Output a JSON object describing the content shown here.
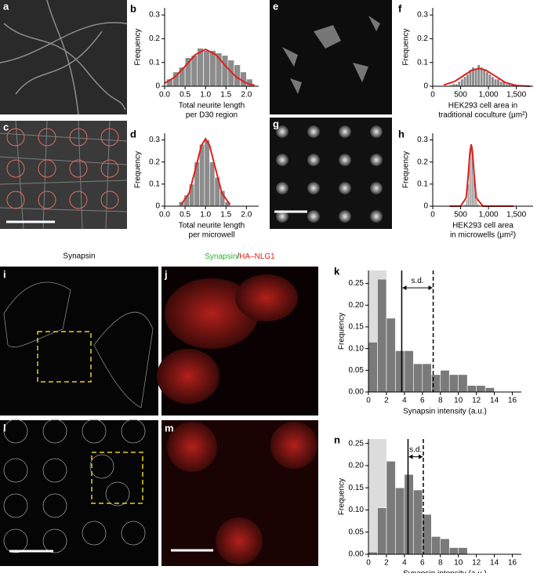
{
  "panel_labels": [
    "a",
    "c",
    "e",
    "g",
    "i",
    "j",
    "l",
    "m"
  ],
  "captions": {
    "i": "Synapsin",
    "j": [
      "Synapsin",
      "/",
      "HA–NLG1"
    ]
  },
  "chart_data": [
    {
      "type": "histogram",
      "label": "b",
      "ylabel": "Frequency",
      "xlabel": [
        "Total neurite length",
        "per D30 region"
      ],
      "bins": [
        0.05,
        0.2,
        0.35,
        0.5,
        0.65,
        0.8,
        0.95,
        1.1,
        1.25,
        1.4,
        1.55,
        1.7,
        1.85,
        2.0,
        2.15
      ],
      "values": [
        0.03,
        0.06,
        0.08,
        0.12,
        0.13,
        0.16,
        0.15,
        0.15,
        0.14,
        0.13,
        0.11,
        0.09,
        0.06,
        0.03
      ],
      "color": "#8c8c8c",
      "fit": {
        "color": "#e0201b",
        "x": [
          0,
          0.25,
          0.5,
          0.75,
          1.0,
          1.25,
          1.5,
          1.75,
          2.0,
          2.2
        ],
        "values": [
          0.013,
          0.039,
          0.084,
          0.133,
          0.155,
          0.133,
          0.084,
          0.039,
          0.013,
          0.004
        ]
      },
      "xlim": [
        0,
        2.3
      ],
      "ylim": [
        0,
        0.33
      ],
      "xticks": [
        {
          "value": 0,
          "label": "0.0"
        },
        0.5,
        {
          "value": 1,
          "label": "1.0"
        },
        1.5,
        {
          "value": 2,
          "label": "2.0"
        }
      ],
      "yticks": [
        0,
        0.1,
        0.2,
        0.3
      ]
    },
    {
      "type": "histogram",
      "label": "d",
      "ylabel": "Frequency",
      "xlabel": [
        "Total neurite length",
        "per microwell"
      ],
      "bins": [
        0.35,
        0.475,
        0.6,
        0.725,
        0.85,
        0.975,
        1.1,
        1.225,
        1.35,
        1.475,
        1.6
      ],
      "values": [
        0.02,
        0.05,
        0.1,
        0.2,
        0.28,
        0.3,
        0.2,
        0.13,
        0.07,
        0.02
      ],
      "color": "#8c8c8c",
      "fit": {
        "color": "#e0201b",
        "x": [
          0.4,
          0.6,
          0.8,
          0.9,
          1.0,
          1.1,
          1.2,
          1.4,
          1.6
        ],
        "values": [
          0.007,
          0.059,
          0.202,
          0.275,
          0.305,
          0.275,
          0.202,
          0.059,
          0.007
        ]
      },
      "xlim": [
        0,
        2.3
      ],
      "ylim": [
        0,
        0.33
      ],
      "xticks": [
        {
          "value": 0,
          "label": "0.0"
        },
        0.5,
        {
          "value": 1,
          "label": "1.0"
        },
        1.5,
        {
          "value": 2,
          "label": "2.0"
        }
      ],
      "yticks": [
        0,
        0.1,
        0.2,
        0.3
      ]
    },
    {
      "type": "histogram",
      "label": "f",
      "ylabel": "Frequency",
      "xlabel": [
        "HEK293 cell area in",
        "traditional coculture (μm²)"
      ],
      "bins": [
        300,
        350,
        400,
        450,
        500,
        550,
        600,
        650,
        700,
        750,
        800,
        850,
        900,
        950,
        1000,
        1050,
        1100,
        1150,
        1200,
        1250,
        1300,
        1350,
        1400,
        1450,
        1500,
        1550,
        1600
      ],
      "values": [
        0.005,
        0.01,
        0.01,
        0.02,
        0.03,
        0.04,
        0.05,
        0.07,
        0.08,
        0.07,
        0.09,
        0.08,
        0.07,
        0.06,
        0.05,
        0.04,
        0.03,
        0.03,
        0.02,
        0.02,
        0.01,
        0.01,
        0.01,
        0.005,
        0.005,
        0.005
      ],
      "color": "#8c8c8c",
      "fit": {
        "color": "#e0201b",
        "x": [
          200,
          400,
          600,
          700,
          830,
          950,
          1100,
          1300,
          1500,
          1750
        ],
        "values": [
          0.005,
          0.021,
          0.052,
          0.067,
          0.075,
          0.068,
          0.046,
          0.016,
          0.003,
          0
        ]
      },
      "xlim": [
        0,
        1800
      ],
      "ylim": [
        0,
        0.33
      ],
      "xticks": [
        0,
        500,
        {
          "value": 1000,
          "label": "1,000"
        },
        {
          "value": 1500,
          "label": "1,500"
        }
      ],
      "yticks": [
        0,
        0.1,
        0.2,
        0.3
      ]
    },
    {
      "type": "histogram",
      "label": "h",
      "ylabel": "Frequency",
      "xlabel": [
        "HEK293 cell area",
        "in microwells (μm²)"
      ],
      "bins": [
        550,
        575,
        600,
        625,
        650,
        675,
        700,
        725,
        750,
        775,
        800,
        825,
        850
      ],
      "values": [
        0.005,
        0.01,
        0.03,
        0.1,
        0.2,
        0.28,
        0.27,
        0.18,
        0.08,
        0.03,
        0.01,
        0.005
      ],
      "color": "#8c8c8c",
      "fit": {
        "color": "#e0201b",
        "x": [
          300,
          500,
          600,
          640,
          665,
          690,
          715,
          740,
          780,
          900,
          1450
        ],
        "values": [
          0,
          0,
          0.038,
          0.151,
          0.24,
          0.28,
          0.24,
          0.151,
          0.038,
          0,
          0
        ]
      },
      "xlim": [
        0,
        1800
      ],
      "ylim": [
        0,
        0.33
      ],
      "xticks": [
        0,
        500,
        {
          "value": 1000,
          "label": "1,000"
        },
        {
          "value": 1500,
          "label": "1,500"
        }
      ],
      "yticks": [
        0,
        0.1,
        0.2,
        0.3
      ]
    },
    {
      "type": "histogram",
      "label": "k",
      "ylabel": "Frequency",
      "xlabel": [
        "Synapsin intensity (a.u.)"
      ],
      "bins": [
        0,
        1,
        2,
        3,
        4,
        5,
        6,
        7,
        8,
        9,
        10,
        11,
        12,
        13,
        14
      ],
      "values": [
        0.115,
        0.26,
        0.17,
        0.095,
        0.095,
        0.065,
        0.065,
        0.04,
        0.05,
        0.04,
        0.04,
        0.015,
        0.015,
        0.01
      ],
      "color": "#7a7a7a",
      "shade": [
        0,
        2
      ],
      "shade_color": "#dcdcdc",
      "lines": [
        {
          "x": 3.7,
          "style": "solid"
        },
        {
          "x": 7.2,
          "style": "dashed"
        }
      ],
      "annotation": "s.d.",
      "annotation_y": 0.24,
      "xlim": [
        0,
        17
      ],
      "ylim": [
        0,
        0.28
      ],
      "xticks": [
        0,
        2,
        4,
        6,
        8,
        10,
        12,
        14,
        16
      ],
      "yticks": [
        {
          "value": 0,
          "label": "0.00"
        },
        0.05,
        {
          "value": 0.1,
          "label": "0.10"
        },
        0.15,
        {
          "value": 0.2,
          "label": "0.20"
        },
        0.25
      ]
    },
    {
      "type": "histogram",
      "label": "n",
      "ylabel": "Frequency",
      "xlabel": [
        "Synapsin intensity (a.u.)"
      ],
      "bins": [
        0,
        1,
        2,
        3,
        4,
        5,
        6,
        7,
        8,
        9,
        10,
        11
      ],
      "values": [
        0.005,
        0.105,
        0.21,
        0.15,
        0.18,
        0.145,
        0.09,
        0.04,
        0.035,
        0.015,
        0.015
      ],
      "color": "#7a7a7a",
      "shade": [
        0,
        2
      ],
      "shade_color": "#dcdcdc",
      "lines": [
        {
          "x": 4.4,
          "style": "solid"
        },
        {
          "x": 6.1,
          "style": "dashed"
        }
      ],
      "annotation": "s.d.",
      "annotation_y": 0.22,
      "xlim": [
        0,
        17
      ],
      "ylim": [
        0,
        0.26
      ],
      "xticks": [
        0,
        2,
        4,
        6,
        8,
        10,
        12,
        14,
        16
      ],
      "yticks": [
        {
          "value": 0,
          "label": "0.00"
        },
        0.05,
        {
          "value": 0.1,
          "label": "0.10"
        },
        0.15,
        {
          "value": 0.2,
          "label": "0.20"
        },
        0.25
      ]
    }
  ]
}
